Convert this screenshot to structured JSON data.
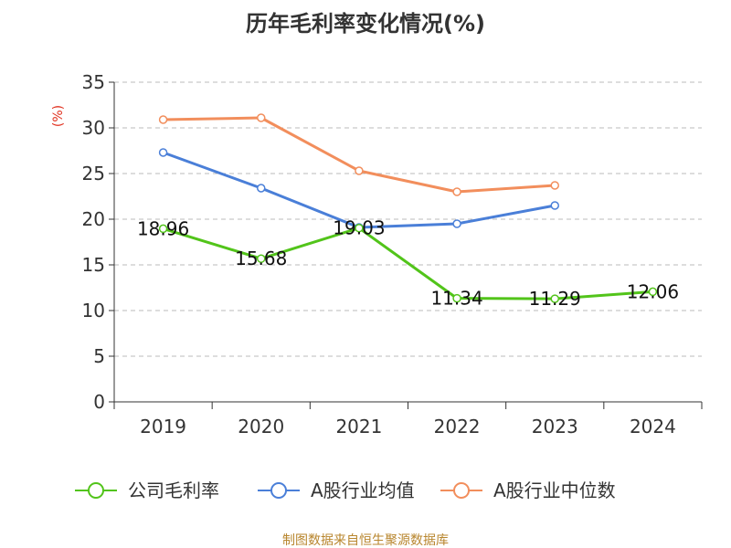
{
  "colors": {
    "series": [
      "#52c41a",
      "#4a7fd8",
      "#f28e5c"
    ],
    "axis": "#333333",
    "grid": "#bbbbbb",
    "unit": "#e0301e",
    "source": "#b8862e"
  },
  "source_text": "制图数据来自恒生聚源数据库",
  "chart_data": {
    "type": "line",
    "title": "历年毛利率变化情况(%)",
    "ylabel": "(%)",
    "xlabel": "",
    "categories": [
      "2019",
      "2020",
      "2021",
      "2022",
      "2023",
      "2024"
    ],
    "ylim": [
      0,
      35
    ],
    "yticks": [
      0,
      5,
      10,
      15,
      20,
      25,
      30,
      35
    ],
    "grid": true,
    "legend_position": "bottom",
    "series": [
      {
        "name": "公司毛利率",
        "values": [
          18.96,
          15.68,
          19.03,
          11.34,
          11.29,
          12.06
        ],
        "labels": [
          "18.96",
          "15.68",
          "19.03",
          "11.34",
          "11.29",
          "12.06"
        ]
      },
      {
        "name": "A股行业均值",
        "values": [
          27.3,
          23.4,
          19.1,
          19.5,
          21.5,
          null
        ]
      },
      {
        "name": "A股行业中位数",
        "values": [
          30.9,
          31.1,
          25.3,
          23.0,
          23.7,
          null
        ]
      }
    ]
  }
}
